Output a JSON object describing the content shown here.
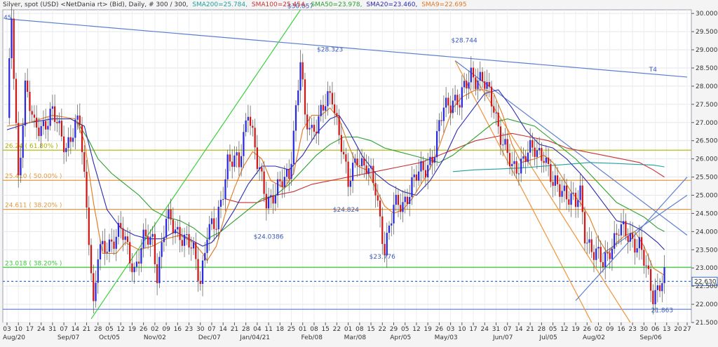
{
  "header": {
    "instrument": "Silver, spot (USD) <NetDania rt> (Bid), Daily, # 300 / 300,",
    "sma200": "SMA200=25.784,",
    "sma100": "SMA100=25.454,",
    "sma50": "SMA50=23.978,",
    "sma20": "SMA20=23.460,",
    "sma9": "SMA9=22.695"
  },
  "chart_data": {
    "type": "candlestick",
    "ylim": [
      21.5,
      30.1
    ],
    "xlim": [
      0,
      299
    ],
    "y_ticks": [
      "30.000",
      "29.500",
      "29.000",
      "28.500",
      "28.000",
      "27.500",
      "27.000",
      "26.500",
      "26.000",
      "25.500",
      "25.000",
      "24.500",
      "24.000",
      "23.500",
      "23.000",
      "22.500",
      "22.000",
      "21.500"
    ],
    "y_tick_values": [
      30.0,
      29.5,
      29.0,
      28.5,
      28.0,
      27.5,
      27.0,
      26.5,
      26.0,
      25.5,
      25.0,
      24.5,
      24.0,
      23.5,
      23.0,
      22.5,
      22.0,
      21.5
    ],
    "x_day_ticks": [
      {
        "i": 0,
        "label": "03"
      },
      {
        "i": 5,
        "label": "10"
      },
      {
        "i": 10,
        "label": "17"
      },
      {
        "i": 15,
        "label": "24"
      },
      {
        "i": 20,
        "label": "31"
      },
      {
        "i": 25,
        "label": "07"
      },
      {
        "i": 30,
        "label": "14"
      },
      {
        "i": 35,
        "label": "21"
      },
      {
        "i": 40,
        "label": "28"
      },
      {
        "i": 45,
        "label": "05"
      },
      {
        "i": 50,
        "label": "12"
      },
      {
        "i": 55,
        "label": "19"
      },
      {
        "i": 60,
        "label": "26"
      },
      {
        "i": 65,
        "label": "02"
      },
      {
        "i": 70,
        "label": "09"
      },
      {
        "i": 75,
        "label": "16"
      },
      {
        "i": 80,
        "label": "23"
      },
      {
        "i": 85,
        "label": "30"
      },
      {
        "i": 90,
        "label": "07"
      },
      {
        "i": 95,
        "label": "14"
      },
      {
        "i": 100,
        "label": "21"
      },
      {
        "i": 105,
        "label": "28"
      },
      {
        "i": 110,
        "label": "04"
      },
      {
        "i": 115,
        "label": "11"
      },
      {
        "i": 120,
        "label": "18"
      },
      {
        "i": 125,
        "label": "25"
      },
      {
        "i": 130,
        "label": "01"
      },
      {
        "i": 135,
        "label": "08"
      },
      {
        "i": 140,
        "label": "15"
      },
      {
        "i": 145,
        "label": "22"
      },
      {
        "i": 150,
        "label": "01"
      },
      {
        "i": 155,
        "label": "08"
      },
      {
        "i": 160,
        "label": "15"
      },
      {
        "i": 165,
        "label": "22"
      },
      {
        "i": 170,
        "label": "29"
      },
      {
        "i": 175,
        "label": "05"
      },
      {
        "i": 180,
        "label": "12"
      },
      {
        "i": 185,
        "label": "19"
      },
      {
        "i": 190,
        "label": "26"
      },
      {
        "i": 195,
        "label": "03"
      },
      {
        "i": 200,
        "label": "10"
      },
      {
        "i": 205,
        "label": "17"
      },
      {
        "i": 210,
        "label": "24"
      },
      {
        "i": 215,
        "label": "31"
      },
      {
        "i": 220,
        "label": "07"
      },
      {
        "i": 225,
        "label": "14"
      },
      {
        "i": 230,
        "label": "21"
      },
      {
        "i": 235,
        "label": "28"
      },
      {
        "i": 240,
        "label": "05"
      },
      {
        "i": 245,
        "label": "12"
      },
      {
        "i": 250,
        "label": "19"
      },
      {
        "i": 255,
        "label": "26"
      },
      {
        "i": 260,
        "label": "02"
      },
      {
        "i": 265,
        "label": "09"
      },
      {
        "i": 270,
        "label": "16"
      },
      {
        "i": 275,
        "label": "23"
      },
      {
        "i": 280,
        "label": "30"
      },
      {
        "i": 285,
        "label": "06"
      },
      {
        "i": 290,
        "label": "13"
      },
      {
        "i": 295,
        "label": "20"
      },
      {
        "i": 299,
        "label": "27"
      }
    ],
    "x_month_ticks": [
      {
        "i": 0,
        "label": "Aug/20"
      },
      {
        "i": 27,
        "label": "Sep/07"
      },
      {
        "i": 45,
        "label": "Oct/05"
      },
      {
        "i": 65,
        "label": "Nov/02"
      },
      {
        "i": 89,
        "label": "Dec/07"
      },
      {
        "i": 109,
        "label": "Jan/04/21"
      },
      {
        "i": 134,
        "label": "Feb/08"
      },
      {
        "i": 153,
        "label": "Mar/08"
      },
      {
        "i": 173,
        "label": "Apr/05"
      },
      {
        "i": 193,
        "label": "May/03"
      },
      {
        "i": 218,
        "label": "Jun/07"
      },
      {
        "i": 238,
        "label": "Jul/05"
      },
      {
        "i": 258,
        "label": "Aug/02"
      },
      {
        "i": 283,
        "label": "Sep/06"
      }
    ],
    "price_anchors": [
      [
        0,
        27.0
      ],
      [
        2,
        29.8
      ],
      [
        5,
        25.5
      ],
      [
        8,
        28.0
      ],
      [
        12,
        26.8
      ],
      [
        20,
        27.2
      ],
      [
        26,
        26.4
      ],
      [
        32,
        27.0
      ],
      [
        36,
        24.0
      ],
      [
        38,
        21.9
      ],
      [
        40,
        23.3
      ],
      [
        46,
        23.8
      ],
      [
        50,
        24.0
      ],
      [
        56,
        23.0
      ],
      [
        60,
        23.7
      ],
      [
        64,
        23.8
      ],
      [
        66,
        22.9
      ],
      [
        70,
        24.3
      ],
      [
        76,
        24.0
      ],
      [
        82,
        23.4
      ],
      [
        85,
        22.7
      ],
      [
        88,
        24.0
      ],
      [
        92,
        24.1
      ],
      [
        97,
        26.0
      ],
      [
        102,
        25.8
      ],
      [
        106,
        27.5
      ],
      [
        110,
        25.8
      ],
      [
        114,
        24.9
      ],
      [
        120,
        25.2
      ],
      [
        124,
        25.6
      ],
      [
        127,
        27.4
      ],
      [
        129,
        28.7
      ],
      [
        131,
        27.0
      ],
      [
        134,
        26.8
      ],
      [
        138,
        27.3
      ],
      [
        143,
        27.7
      ],
      [
        147,
        26.5
      ],
      [
        150,
        25.2
      ],
      [
        154,
        26.1
      ],
      [
        158,
        25.8
      ],
      [
        162,
        25.1
      ],
      [
        166,
        23.6
      ],
      [
        170,
        24.6
      ],
      [
        174,
        24.8
      ],
      [
        178,
        25.3
      ],
      [
        184,
        25.8
      ],
      [
        188,
        26.2
      ],
      [
        192,
        27.4
      ],
      [
        196,
        27.7
      ],
      [
        199,
        27.5
      ],
      [
        204,
        28.4
      ],
      [
        209,
        28.1
      ],
      [
        214,
        27.5
      ],
      [
        218,
        26.4
      ],
      [
        222,
        25.7
      ],
      [
        228,
        26.1
      ],
      [
        232,
        26.2
      ],
      [
        236,
        26.2
      ],
      [
        240,
        25.2
      ],
      [
        245,
        25.2
      ],
      [
        250,
        24.7
      ],
      [
        252,
        25.0
      ],
      [
        254,
        24.0
      ],
      [
        258,
        23.4
      ],
      [
        262,
        23.1
      ],
      [
        265,
        23.6
      ],
      [
        269,
        24.0
      ],
      [
        274,
        23.9
      ],
      [
        278,
        23.6
      ],
      [
        281,
        22.9
      ],
      [
        284,
        22.3
      ],
      [
        287,
        22.6
      ],
      [
        289,
        22.7
      ]
    ],
    "sma9": [
      [
        0,
        26.9
      ],
      [
        10,
        27.0
      ],
      [
        20,
        27.2
      ],
      [
        30,
        27.1
      ],
      [
        34,
        26.5
      ],
      [
        38,
        24.8
      ],
      [
        42,
        23.4
      ],
      [
        48,
        23.4
      ],
      [
        52,
        23.7
      ],
      [
        58,
        23.5
      ],
      [
        64,
        23.6
      ],
      [
        70,
        23.8
      ],
      [
        76,
        23.9
      ],
      [
        82,
        23.7
      ],
      [
        86,
        23.4
      ],
      [
        88,
        23.2
      ],
      [
        92,
        23.6
      ],
      [
        96,
        24.5
      ],
      [
        100,
        25.2
      ],
      [
        104,
        25.8
      ],
      [
        108,
        26.2
      ],
      [
        112,
        26.0
      ],
      [
        116,
        25.4
      ],
      [
        122,
        25.2
      ],
      [
        126,
        25.6
      ],
      [
        130,
        26.8
      ],
      [
        134,
        27.2
      ],
      [
        138,
        27.2
      ],
      [
        142,
        27.4
      ],
      [
        146,
        27.1
      ],
      [
        150,
        26.4
      ],
      [
        154,
        25.8
      ],
      [
        158,
        25.7
      ],
      [
        162,
        25.2
      ],
      [
        166,
        24.7
      ],
      [
        170,
        24.5
      ],
      [
        174,
        24.6
      ],
      [
        178,
        24.9
      ],
      [
        184,
        25.5
      ],
      [
        188,
        26.0
      ],
      [
        192,
        26.7
      ],
      [
        196,
        27.4
      ],
      [
        200,
        27.7
      ],
      [
        206,
        27.9
      ],
      [
        210,
        27.9
      ],
      [
        214,
        27.8
      ],
      [
        218,
        27.2
      ],
      [
        222,
        26.4
      ],
      [
        226,
        25.9
      ],
      [
        232,
        26.0
      ],
      [
        236,
        26.1
      ],
      [
        240,
        25.9
      ],
      [
        244,
        25.5
      ],
      [
        248,
        25.1
      ],
      [
        252,
        24.8
      ],
      [
        256,
        24.4
      ],
      [
        260,
        23.8
      ],
      [
        264,
        23.4
      ],
      [
        268,
        23.7
      ],
      [
        272,
        23.9
      ],
      [
        276,
        24.0
      ],
      [
        280,
        23.6
      ],
      [
        284,
        23.0
      ],
      [
        289,
        22.8
      ]
    ],
    "sma20": [
      [
        0,
        26.8
      ],
      [
        10,
        27.0
      ],
      [
        20,
        27.1
      ],
      [
        28,
        27.1
      ],
      [
        34,
        26.9
      ],
      [
        38,
        25.9
      ],
      [
        44,
        24.6
      ],
      [
        50,
        24.1
      ],
      [
        56,
        23.9
      ],
      [
        62,
        23.8
      ],
      [
        68,
        23.8
      ],
      [
        74,
        24.0
      ],
      [
        80,
        23.8
      ],
      [
        86,
        23.6
      ],
      [
        90,
        23.7
      ],
      [
        94,
        24.0
      ],
      [
        100,
        24.6
      ],
      [
        106,
        25.3
      ],
      [
        112,
        25.8
      ],
      [
        118,
        25.8
      ],
      [
        124,
        25.7
      ],
      [
        130,
        26.1
      ],
      [
        136,
        26.7
      ],
      [
        142,
        27.1
      ],
      [
        146,
        27.2
      ],
      [
        150,
        26.8
      ],
      [
        156,
        26.1
      ],
      [
        162,
        25.6
      ],
      [
        168,
        25.3
      ],
      [
        174,
        25.1
      ],
      [
        180,
        25.0
      ],
      [
        186,
        25.4
      ],
      [
        192,
        26.0
      ],
      [
        198,
        26.8
      ],
      [
        204,
        27.3
      ],
      [
        210,
        27.8
      ],
      [
        216,
        27.9
      ],
      [
        222,
        27.4
      ],
      [
        228,
        26.8
      ],
      [
        234,
        26.4
      ],
      [
        240,
        26.3
      ],
      [
        246,
        26.0
      ],
      [
        252,
        25.6
      ],
      [
        256,
        25.3
      ],
      [
        262,
        24.8
      ],
      [
        268,
        24.3
      ],
      [
        274,
        24.2
      ],
      [
        280,
        24.0
      ],
      [
        286,
        23.7
      ],
      [
        289,
        23.5
      ]
    ],
    "sma50": [
      [
        31,
        27.0
      ],
      [
        36,
        26.5
      ],
      [
        40,
        26.0
      ],
      [
        46,
        25.6
      ],
      [
        52,
        25.3
      ],
      [
        58,
        25.0
      ],
      [
        64,
        24.6
      ],
      [
        70,
        24.4
      ],
      [
        76,
        24.3
      ],
      [
        82,
        24.1
      ],
      [
        88,
        23.8
      ],
      [
        94,
        24.0
      ],
      [
        100,
        24.3
      ],
      [
        106,
        24.6
      ],
      [
        112,
        24.9
      ],
      [
        118,
        25.0
      ],
      [
        124,
        25.3
      ],
      [
        130,
        25.7
      ],
      [
        136,
        26.1
      ],
      [
        142,
        26.4
      ],
      [
        148,
        26.6
      ],
      [
        154,
        26.6
      ],
      [
        160,
        26.5
      ],
      [
        166,
        26.3
      ],
      [
        172,
        26.2
      ],
      [
        178,
        26.1
      ],
      [
        184,
        26.0
      ],
      [
        190,
        25.9
      ],
      [
        196,
        26.1
      ],
      [
        202,
        26.4
      ],
      [
        208,
        26.7
      ],
      [
        214,
        27.0
      ],
      [
        220,
        27.1
      ],
      [
        226,
        27.0
      ],
      [
        232,
        26.9
      ],
      [
        238,
        26.6
      ],
      [
        244,
        26.3
      ],
      [
        250,
        26.0
      ],
      [
        256,
        25.6
      ],
      [
        262,
        25.2
      ],
      [
        268,
        24.8
      ],
      [
        274,
        24.6
      ],
      [
        280,
        24.4
      ],
      [
        286,
        24.1
      ],
      [
        289,
        24.0
      ]
    ],
    "sma100": [
      [
        96,
        24.9
      ],
      [
        102,
        24.8
      ],
      [
        110,
        24.8
      ],
      [
        118,
        25.0
      ],
      [
        126,
        25.1
      ],
      [
        134,
        25.3
      ],
      [
        142,
        25.4
      ],
      [
        150,
        25.5
      ],
      [
        158,
        25.6
      ],
      [
        166,
        25.7
      ],
      [
        174,
        25.8
      ],
      [
        182,
        25.9
      ],
      [
        190,
        26.1
      ],
      [
        198,
        26.3
      ],
      [
        206,
        26.5
      ],
      [
        214,
        26.6
      ],
      [
        222,
        26.7
      ],
      [
        230,
        26.6
      ],
      [
        238,
        26.5
      ],
      [
        246,
        26.3
      ],
      [
        254,
        26.2
      ],
      [
        262,
        26.1
      ],
      [
        270,
        26.0
      ],
      [
        278,
        25.9
      ],
      [
        284,
        25.7
      ],
      [
        289,
        25.5
      ]
    ],
    "sma200": [
      [
        196,
        25.65
      ],
      [
        206,
        25.7
      ],
      [
        216,
        25.72
      ],
      [
        226,
        25.75
      ],
      [
        236,
        25.8
      ],
      [
        246,
        25.85
      ],
      [
        256,
        25.9
      ],
      [
        266,
        25.88
      ],
      [
        276,
        25.85
      ],
      [
        284,
        25.83
      ],
      [
        289,
        25.78
      ]
    ],
    "hlines": [
      {
        "value": 26.24,
        "color": "#b0b000",
        "label": "26.24 ( 61.80% )"
      },
      {
        "value": 25.41,
        "color": "#e49a3c",
        "label": "25.410 ( 50.00% )"
      },
      {
        "value": 24.611,
        "color": "#e49a3c",
        "label": "24.611 ( 38.20% )"
      },
      {
        "value": 23.018,
        "color": "#3cc83c",
        "label": "23.018 ( 38.20% )"
      },
      {
        "value": 22.63,
        "color": "#3c6ec8",
        "dashed": true,
        "label": ""
      },
      {
        "value": 21.863,
        "color": "#5a78c8",
        "label": ""
      }
    ],
    "trendlines": [
      {
        "name": "T4",
        "color": "#5a7ed0",
        "pts": [
          [
            0,
            29.85
          ],
          [
            299,
            28.25
          ]
        ]
      },
      {
        "name": "",
        "color": "#3cd03c",
        "pts": [
          [
            37,
            21.6
          ],
          [
            129,
            30.1
          ]
        ]
      },
      {
        "name": "",
        "color": "#f0943c",
        "pts": [
          [
            197,
            28.7
          ],
          [
            257,
            21.5
          ]
        ]
      },
      {
        "name": "",
        "color": "#f0943c",
        "pts": [
          [
            206,
            28.2
          ],
          [
            274,
            21.5
          ]
        ]
      },
      {
        "name": "",
        "color": "#6080d0",
        "pts": [
          [
            197,
            28.7
          ],
          [
            299,
            23.9
          ]
        ]
      },
      {
        "name": "",
        "color": "#6080d0",
        "pts": [
          [
            250,
            22.1
          ],
          [
            299,
            25.5
          ]
        ]
      },
      {
        "name": "",
        "color": "#6080d0",
        "pts": [
          [
            262,
            23.4
          ],
          [
            299,
            25.0
          ]
        ]
      }
    ],
    "annotations": [
      {
        "text": "$30.057",
        "i": 129,
        "v": 30.15
      },
      {
        "text": "$28.323",
        "i": 142,
        "v": 28.95
      },
      {
        "text": "$28.744",
        "i": 201,
        "v": 29.2
      },
      {
        "text": "$24.824",
        "i": 149,
        "v": 24.55
      },
      {
        "text": "$24.0386",
        "i": 115,
        "v": 23.8
      },
      {
        "text": "$23.776",
        "i": 165,
        "v": 23.25
      },
      {
        "text": "T4",
        "i": 284,
        "v": 28.4
      },
      {
        "text": "21.863",
        "i": 288,
        "v": 21.78
      }
    ],
    "left_label": "45",
    "last_price": "22.630"
  }
}
